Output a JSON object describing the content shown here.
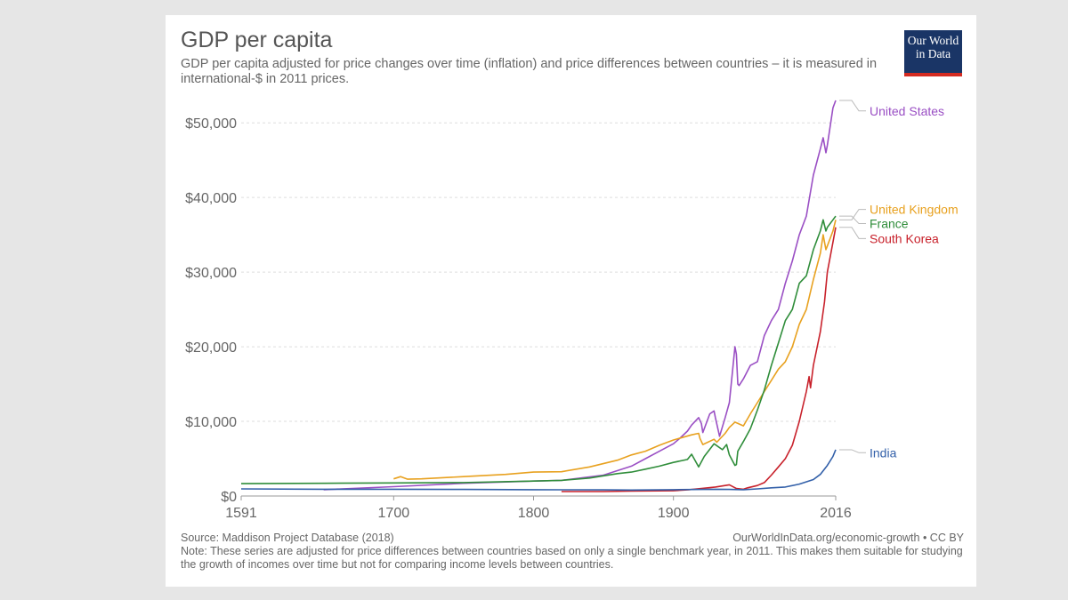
{
  "header": {
    "title": "GDP per capita",
    "subtitle": "GDP per capita adjusted for price changes over time (inflation) and price differences between countries – it is measured in international-$ in 2011 prices."
  },
  "logo": {
    "line1": "Our World",
    "line2": "in Data",
    "bg_color": "#1a3566",
    "accent_color": "#d42b21"
  },
  "footer": {
    "source": "Source: Maddison Project Database (2018)",
    "credit": "OurWorldInData.org/economic-growth • CC BY",
    "note": "Note: These series are adjusted for price differences between countries based on only a single benchmark year, in 2011. This makes them suitable for studying the growth of incomes over time but not for comparing income levels between countries."
  },
  "chart_data": {
    "type": "line",
    "xlim": [
      1591,
      2016
    ],
    "ylim": [
      0,
      53000
    ],
    "x_ticks": [
      1591,
      1700,
      1800,
      1900,
      2016
    ],
    "y_ticks": [
      0,
      10000,
      20000,
      30000,
      40000,
      50000
    ],
    "y_tick_labels": [
      "$0",
      "$10,000",
      "$20,000",
      "$30,000",
      "$40,000",
      "$50,000"
    ],
    "grid": "horizontal dashed",
    "legend": "right, at line ends",
    "series": [
      {
        "name": "United States",
        "color": "#9a4fc4",
        "points": [
          [
            1650,
            850
          ],
          [
            1700,
            1250
          ],
          [
            1750,
            1700
          ],
          [
            1800,
            2000
          ],
          [
            1820,
            2100
          ],
          [
            1850,
            2800
          ],
          [
            1870,
            4000
          ],
          [
            1880,
            5000
          ],
          [
            1890,
            6000
          ],
          [
            1900,
            7000
          ],
          [
            1905,
            7800
          ],
          [
            1910,
            8700
          ],
          [
            1913,
            9500
          ],
          [
            1918,
            10500
          ],
          [
            1920,
            9700
          ],
          [
            1921,
            8500
          ],
          [
            1926,
            11000
          ],
          [
            1929,
            11400
          ],
          [
            1930,
            10500
          ],
          [
            1933,
            8000
          ],
          [
            1937,
            10500
          ],
          [
            1940,
            12500
          ],
          [
            1944,
            20000
          ],
          [
            1945,
            19000
          ],
          [
            1946,
            15000
          ],
          [
            1947,
            14800
          ],
          [
            1950,
            15700
          ],
          [
            1955,
            17500
          ],
          [
            1960,
            18000
          ],
          [
            1965,
            21500
          ],
          [
            1970,
            23500
          ],
          [
            1975,
            25000
          ],
          [
            1980,
            28500
          ],
          [
            1985,
            31500
          ],
          [
            1990,
            35000
          ],
          [
            1995,
            37500
          ],
          [
            2000,
            43000
          ],
          [
            2005,
            46500
          ],
          [
            2007,
            48000
          ],
          [
            2009,
            46000
          ],
          [
            2010,
            47000
          ],
          [
            2014,
            52000
          ],
          [
            2016,
            53000
          ]
        ]
      },
      {
        "name": "United Kingdom",
        "color": "#e8a11f",
        "points": [
          [
            1700,
            2300
          ],
          [
            1705,
            2600
          ],
          [
            1710,
            2250
          ],
          [
            1720,
            2300
          ],
          [
            1750,
            2600
          ],
          [
            1780,
            2900
          ],
          [
            1800,
            3200
          ],
          [
            1820,
            3250
          ],
          [
            1840,
            3900
          ],
          [
            1860,
            4800
          ],
          [
            1870,
            5500
          ],
          [
            1880,
            6000
          ],
          [
            1890,
            6800
          ],
          [
            1900,
            7500
          ],
          [
            1913,
            8200
          ],
          [
            1918,
            8400
          ],
          [
            1919,
            7700
          ],
          [
            1921,
            6900
          ],
          [
            1929,
            7600
          ],
          [
            1931,
            7200
          ],
          [
            1937,
            8400
          ],
          [
            1940,
            9200
          ],
          [
            1944,
            9900
          ],
          [
            1950,
            9400
          ],
          [
            1955,
            11000
          ],
          [
            1960,
            12500
          ],
          [
            1965,
            14000
          ],
          [
            1970,
            15500
          ],
          [
            1975,
            17000
          ],
          [
            1980,
            18000
          ],
          [
            1985,
            20000
          ],
          [
            1990,
            23000
          ],
          [
            1995,
            25000
          ],
          [
            2000,
            29000
          ],
          [
            2005,
            32500
          ],
          [
            2007,
            35000
          ],
          [
            2009,
            33000
          ],
          [
            2010,
            33500
          ],
          [
            2014,
            35500
          ],
          [
            2016,
            37000
          ]
        ]
      },
      {
        "name": "France",
        "color": "#2f8d3a",
        "points": [
          [
            1591,
            1650
          ],
          [
            1650,
            1700
          ],
          [
            1700,
            1750
          ],
          [
            1750,
            1800
          ],
          [
            1800,
            2000
          ],
          [
            1820,
            2100
          ],
          [
            1840,
            2400
          ],
          [
            1860,
            3000
          ],
          [
            1870,
            3200
          ],
          [
            1880,
            3600
          ],
          [
            1890,
            4000
          ],
          [
            1900,
            4500
          ],
          [
            1910,
            4900
          ],
          [
            1913,
            5600
          ],
          [
            1918,
            3900
          ],
          [
            1922,
            5300
          ],
          [
            1929,
            7000
          ],
          [
            1935,
            6200
          ],
          [
            1938,
            6900
          ],
          [
            1940,
            5500
          ],
          [
            1944,
            4100
          ],
          [
            1945,
            4200
          ],
          [
            1946,
            6000
          ],
          [
            1950,
            7300
          ],
          [
            1955,
            9000
          ],
          [
            1960,
            11500
          ],
          [
            1965,
            14200
          ],
          [
            1970,
            17500
          ],
          [
            1975,
            20500
          ],
          [
            1980,
            23500
          ],
          [
            1985,
            25000
          ],
          [
            1990,
            28500
          ],
          [
            1995,
            29500
          ],
          [
            2000,
            33000
          ],
          [
            2005,
            35500
          ],
          [
            2007,
            37000
          ],
          [
            2009,
            35500
          ],
          [
            2010,
            36000
          ],
          [
            2014,
            37000
          ],
          [
            2016,
            37500
          ]
        ]
      },
      {
        "name": "South Korea",
        "color": "#c8212b",
        "points": [
          [
            1820,
            600
          ],
          [
            1850,
            600
          ],
          [
            1870,
            650
          ],
          [
            1900,
            700
          ],
          [
            1911,
            850
          ],
          [
            1920,
            1000
          ],
          [
            1930,
            1200
          ],
          [
            1940,
            1500
          ],
          [
            1945,
            1000
          ],
          [
            1950,
            900
          ],
          [
            1953,
            1100
          ],
          [
            1960,
            1400
          ],
          [
            1965,
            1800
          ],
          [
            1970,
            2800
          ],
          [
            1975,
            3900
          ],
          [
            1980,
            5000
          ],
          [
            1985,
            6800
          ],
          [
            1990,
            10000
          ],
          [
            1995,
            14000
          ],
          [
            1997,
            16000
          ],
          [
            1998,
            14500
          ],
          [
            2000,
            17500
          ],
          [
            2005,
            22000
          ],
          [
            2008,
            26000
          ],
          [
            2010,
            30000
          ],
          [
            2014,
            34000
          ],
          [
            2016,
            36000
          ]
        ]
      },
      {
        "name": "India",
        "color": "#3360a9",
        "points": [
          [
            1591,
            950
          ],
          [
            1650,
            900
          ],
          [
            1700,
            900
          ],
          [
            1750,
            880
          ],
          [
            1800,
            850
          ],
          [
            1820,
            830
          ],
          [
            1850,
            820
          ],
          [
            1870,
            800
          ],
          [
            1900,
            850
          ],
          [
            1913,
            870
          ],
          [
            1930,
            900
          ],
          [
            1940,
            880
          ],
          [
            1950,
            850
          ],
          [
            1960,
            950
          ],
          [
            1970,
            1100
          ],
          [
            1980,
            1200
          ],
          [
            1990,
            1600
          ],
          [
            2000,
            2200
          ],
          [
            2005,
            2900
          ],
          [
            2010,
            4100
          ],
          [
            2014,
            5300
          ],
          [
            2016,
            6200
          ]
        ]
      }
    ],
    "legend_positions": [
      {
        "name": "United States",
        "label_y": 51600
      },
      {
        "name": "United Kingdom",
        "label_y": 38400
      },
      {
        "name": "France",
        "label_y": 36500
      },
      {
        "name": "South Korea",
        "label_y": 34500
      },
      {
        "name": "India",
        "label_y": 5800
      }
    ]
  }
}
